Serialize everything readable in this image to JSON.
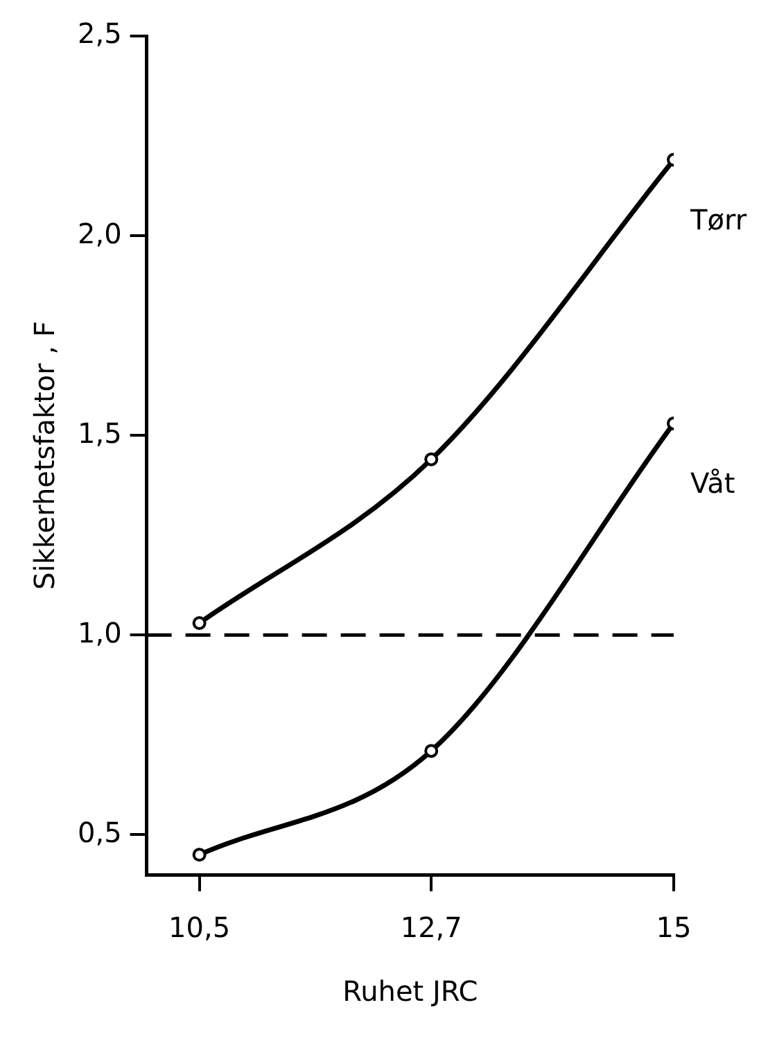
{
  "chart_data": {
    "type": "line",
    "xlabel": "Ruhet JRC",
    "ylabel": "Sikkerhetsfaktor , F",
    "x": [
      10.5,
      12.7,
      15
    ],
    "xlim": [
      10,
      15
    ],
    "xticks": [
      {
        "value": 10.5,
        "label": "10,5"
      },
      {
        "value": 12.7,
        "label": "12,7"
      },
      15
    ],
    "ylim": [
      0.4,
      2.5
    ],
    "yticks": [
      {
        "value": 0.5,
        "label": "0,5"
      },
      {
        "value": 1.0,
        "label": "1,0"
      },
      {
        "value": 1.5,
        "label": "1,5"
      },
      {
        "value": 2.0,
        "label": "2,0"
      },
      {
        "value": 2.5,
        "label": "2,5"
      }
    ],
    "series": [
      {
        "name": "Tørr",
        "color": "#000000",
        "values": [
          1.03,
          1.44,
          2.19
        ]
      },
      {
        "name": "Våt",
        "color": "#000000",
        "values": [
          0.45,
          0.71,
          1.53
        ]
      }
    ],
    "ref_lines": [
      {
        "axis": "y",
        "value": 1.0,
        "line_style": "dashed",
        "color": "#000000"
      }
    ],
    "marker": "circle",
    "line_style": "solid",
    "grid": false,
    "legend": false
  }
}
